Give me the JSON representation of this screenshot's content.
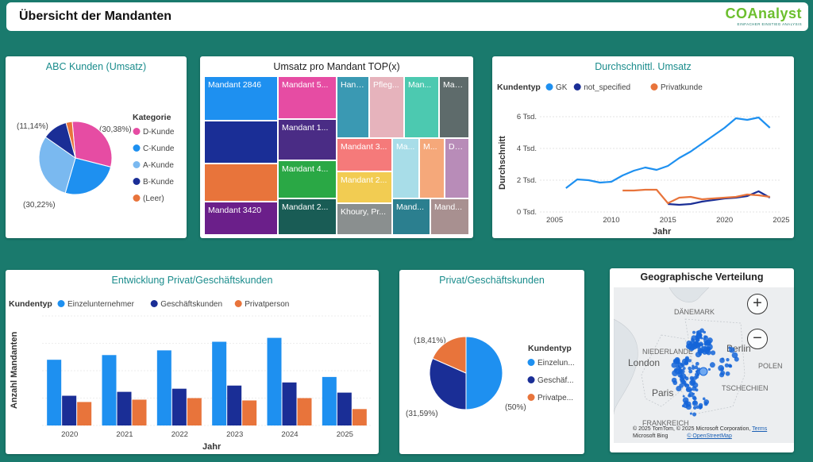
{
  "header": {
    "title": "Übersicht der Mandanten",
    "logo_name": "COAnalyst",
    "logo_sub": "EINFACHER EINSTIEG ANALYSIS"
  },
  "abc_chart": {
    "title": "ABC Kunden (Umsatz)",
    "legend_title": "Kategorie",
    "labels": {
      "d": "(30,38%)",
      "a": "(30,22%)",
      "b": "(11,14%)"
    },
    "chart_data": {
      "type": "pie",
      "categories": [
        "D-Kunde",
        "C-Kunde",
        "A-Kunde",
        "B-Kunde",
        "(Leer)"
      ],
      "values": [
        30.38,
        25.5,
        30.22,
        11.14,
        2.76
      ],
      "colors": [
        "#e64ca3",
        "#1e90f0",
        "#7ab9f0",
        "#1a2e96",
        "#e8743b"
      ]
    }
  },
  "treemap": {
    "title": "Umsatz pro Mandant TOP(x)",
    "tiles": [
      {
        "label": "Mandant 2846",
        "color": "#1e90f0"
      },
      {
        "label": "",
        "color": "#1a2e96"
      },
      {
        "label": "",
        "color": "#e8743b"
      },
      {
        "label": "Mandant 3420",
        "color": "#6b1f8a"
      },
      {
        "label": "Mandant 5...",
        "color": "#e64ca3"
      },
      {
        "label": "Mandant 1...",
        "color": "#4a2c85"
      },
      {
        "label": "Mandant 4...",
        "color": "#2aa845"
      },
      {
        "label": "Mandant 2...",
        "color": "#195c55"
      },
      {
        "label": "Hans...",
        "color": "#3a99b3"
      },
      {
        "label": "Pfleg...",
        "color": "#e6b3bc"
      },
      {
        "label": "Man...",
        "color": "#4cc9b0"
      },
      {
        "label": "Man...",
        "color": "#5e6b6b"
      },
      {
        "label": "Mandant 3...",
        "color": "#f57a7a"
      },
      {
        "label": "Ma...",
        "color": "#a8dde8"
      },
      {
        "label": "M...",
        "color": "#f5a87a"
      },
      {
        "label": "Da...",
        "color": "#b88cb8"
      },
      {
        "label": "Mandant 2...",
        "color": "#f2cc52"
      },
      {
        "label": "Khoury, Pr...",
        "color": "#8a8f8f"
      },
      {
        "label": "Mand...",
        "color": "#2b7f8f"
      },
      {
        "label": "Mand...",
        "color": "#a89090"
      }
    ]
  },
  "avg_chart": {
    "title": "Durchschnittl. Umsatz",
    "legend_title": "Kundentyp",
    "ylabel": "Durchschnitt",
    "xlabel": "Jahr",
    "y_ticks": [
      "0 Tsd.",
      "2 Tsd.",
      "4 Tsd.",
      "6 Tsd."
    ],
    "x_ticks": [
      "2005",
      "2010",
      "2015",
      "2020",
      "2025"
    ],
    "chart_data": {
      "type": "line",
      "xlim": [
        2003.7,
        2025
      ],
      "ylim": [
        0,
        6500
      ],
      "series": [
        {
          "name": "GK",
          "color": "#1e90f0",
          "x": [
            2006,
            2007,
            2008,
            2009,
            2010,
            2011,
            2012,
            2013,
            2014,
            2015,
            2016,
            2017,
            2018,
            2019,
            2020,
            2021,
            2022,
            2023,
            2024
          ],
          "y": [
            1500,
            2050,
            2000,
            1850,
            1900,
            2300,
            2600,
            2800,
            2650,
            2900,
            3400,
            3800,
            4300,
            4800,
            5300,
            5900,
            5800,
            5950,
            5300
          ]
        },
        {
          "name": "not_specified",
          "color": "#1a2e96",
          "x": [
            2015,
            2016,
            2017,
            2018,
            2019,
            2020,
            2021,
            2022,
            2023,
            2024
          ],
          "y": [
            500,
            450,
            500,
            650,
            750,
            850,
            900,
            1000,
            1300,
            900
          ]
        },
        {
          "name": "Privatkunde",
          "color": "#e8743b",
          "x": [
            2011,
            2012,
            2013,
            2014,
            2015,
            2016,
            2017,
            2018,
            2019,
            2020,
            2021,
            2022,
            2023,
            2024
          ],
          "y": [
            1350,
            1350,
            1400,
            1400,
            550,
            900,
            950,
            800,
            850,
            900,
            950,
            1100,
            1050,
            950
          ]
        }
      ]
    }
  },
  "dev_chart": {
    "title": "Entwicklung Privat/Geschäftskunden",
    "legend_title": "Kundentyp",
    "ylabel": "Anzahl Mandanten",
    "xlabel": "Jahr",
    "chart_data": {
      "type": "bar",
      "categories": [
        "2020",
        "2021",
        "2022",
        "2023",
        "2024",
        "2025"
      ],
      "ylim": [
        0,
        140
      ],
      "series": [
        {
          "name": "Einzelunternehmer",
          "color": "#1e90f0",
          "values": [
            84,
            90,
            96,
            107,
            112,
            62
          ]
        },
        {
          "name": "Geschäftskunden",
          "color": "#1a2e96",
          "values": [
            38,
            43,
            47,
            51,
            55,
            42
          ]
        },
        {
          "name": "Privatperson",
          "color": "#e8743b",
          "values": [
            30,
            33,
            35,
            32,
            35,
            21
          ]
        }
      ]
    }
  },
  "pg_chart": {
    "title": "Privat/Geschäftskunden",
    "legend_title": "Kundentyp",
    "labels": {
      "einzel": "(50%)",
      "gesch": "(31,59%)",
      "privat": "(18,41%)"
    },
    "chart_data": {
      "type": "pie",
      "categories": [
        "Einzelun...",
        "Geschäf...",
        "Privatpe..."
      ],
      "values": [
        50,
        31.59,
        18.41
      ],
      "colors": [
        "#1e90f0",
        "#1a2e96",
        "#e8743b"
      ]
    }
  },
  "geo": {
    "title": "Geographische Verteilung",
    "zoom_in": "+",
    "zoom_out": "−",
    "labels": {
      "daenemark": "DÄNEMARK",
      "niederlande": "NIEDERLANDE",
      "london": "London",
      "berlin": "Berlin",
      "polen": "POLEN",
      "paris": "Paris",
      "tschechien": "TSCHECHIEN",
      "frankreich": "FRANKREICH"
    },
    "copyright": "© 2025 TomTom, © 2025 Microsoft Corporation,",
    "terms": "Terms",
    "bing": "Microsoft Bing",
    "osm": "© OpenStreetMap"
  }
}
